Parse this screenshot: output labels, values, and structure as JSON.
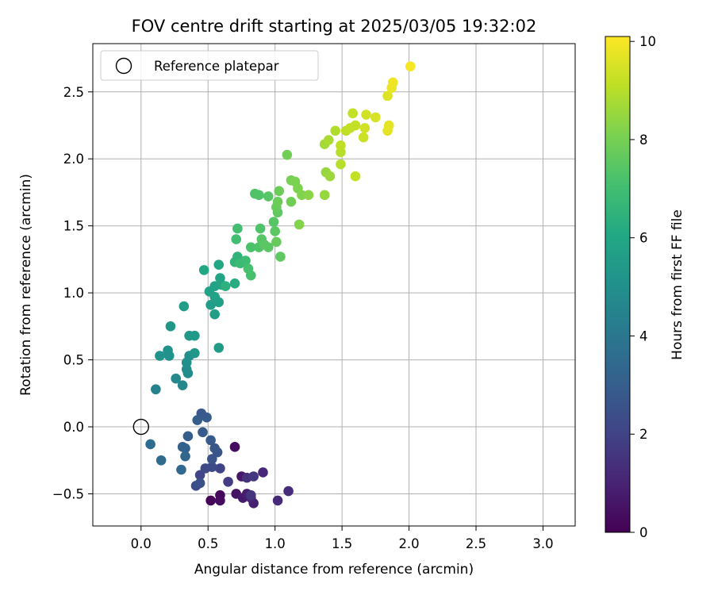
{
  "chart_data": {
    "type": "scatter",
    "title": "FOV centre drift starting at 2025/03/05 19:32:02",
    "xlabel": "Angular distance from reference (arcmin)",
    "ylabel": "Rotation from reference (arcmin)",
    "xlim": [
      -0.36,
      3.24
    ],
    "ylim": [
      -0.74,
      2.86
    ],
    "xticks": [
      "0.0",
      "0.5",
      "1.0",
      "1.5",
      "2.0",
      "2.5",
      "3.0"
    ],
    "yticks": [
      "−0.5",
      "0.0",
      "0.5",
      "1.0",
      "1.5",
      "2.0",
      "2.5"
    ],
    "grid": true,
    "legend": {
      "position": "top-left",
      "entries": [
        "Reference platepar"
      ]
    },
    "reference_point": [
      0.0,
      0.0
    ],
    "colorbar": {
      "label": "Hours from first FF file",
      "range": [
        0,
        10.1
      ],
      "ticks": [
        "0",
        "2",
        "4",
        "6",
        "8",
        "10"
      ],
      "colormap": "viridis"
    },
    "points": [
      [
        0.52,
        -0.55,
        0.1
      ],
      [
        0.59,
        -0.51,
        0.2
      ],
      [
        0.59,
        -0.55,
        0.3
      ],
      [
        0.7,
        -0.15,
        0.3
      ],
      [
        0.71,
        -0.5,
        0.5
      ],
      [
        0.75,
        -0.37,
        0.6
      ],
      [
        0.76,
        -0.53,
        0.7
      ],
      [
        0.79,
        -0.5,
        0.8
      ],
      [
        0.84,
        -0.57,
        0.9
      ],
      [
        0.82,
        -0.53,
        1.0
      ],
      [
        0.91,
        -0.34,
        1.1
      ],
      [
        1.02,
        -0.55,
        1.2
      ],
      [
        1.1,
        -0.48,
        1.3
      ],
      [
        0.79,
        -0.38,
        1.4
      ],
      [
        0.82,
        -0.51,
        1.5
      ],
      [
        0.84,
        -0.37,
        1.6
      ],
      [
        0.65,
        -0.41,
        1.8
      ],
      [
        0.59,
        -0.31,
        2.0
      ],
      [
        0.44,
        -0.36,
        2.1
      ],
      [
        0.48,
        -0.31,
        2.2
      ],
      [
        0.53,
        -0.3,
        2.3
      ],
      [
        0.41,
        -0.44,
        2.4
      ],
      [
        0.44,
        -0.42,
        2.5
      ],
      [
        0.53,
        -0.24,
        2.6
      ],
      [
        0.57,
        -0.19,
        2.6
      ],
      [
        0.55,
        -0.16,
        2.7
      ],
      [
        0.52,
        -0.1,
        2.8
      ],
      [
        0.46,
        -0.04,
        2.9
      ],
      [
        0.35,
        -0.07,
        3.0
      ],
      [
        0.33,
        -0.16,
        3.1
      ],
      [
        0.31,
        -0.15,
        3.2
      ],
      [
        0.33,
        -0.22,
        3.3
      ],
      [
        0.3,
        -0.32,
        3.4
      ],
      [
        0.15,
        -0.25,
        3.5
      ],
      [
        0.07,
        -0.13,
        3.6
      ],
      [
        0.42,
        0.05,
        3.0
      ],
      [
        0.45,
        0.1,
        2.8
      ],
      [
        0.49,
        0.07,
        2.9
      ],
      [
        0.11,
        0.28,
        4.5
      ],
      [
        0.31,
        0.31,
        4.6
      ],
      [
        0.26,
        0.36,
        4.7
      ],
      [
        0.35,
        0.4,
        4.8
      ],
      [
        0.34,
        0.43,
        4.9
      ],
      [
        0.34,
        0.48,
        5.0
      ],
      [
        0.36,
        0.53,
        5.0
      ],
      [
        0.21,
        0.53,
        5.1
      ],
      [
        0.2,
        0.57,
        5.1
      ],
      [
        0.14,
        0.53,
        5.2
      ],
      [
        0.4,
        0.55,
        5.3
      ],
      [
        0.22,
        0.75,
        5.3
      ],
      [
        0.36,
        0.68,
        5.3
      ],
      [
        0.4,
        0.68,
        5.4
      ],
      [
        0.58,
        0.59,
        5.5
      ],
      [
        0.32,
        0.9,
        5.6
      ],
      [
        0.55,
        0.84,
        5.6
      ],
      [
        0.52,
        0.91,
        5.6
      ],
      [
        0.58,
        0.93,
        5.7
      ],
      [
        0.55,
        0.97,
        5.8
      ],
      [
        0.51,
        1.01,
        5.8
      ],
      [
        0.55,
        1.05,
        5.8
      ],
      [
        0.6,
        1.06,
        5.9
      ],
      [
        0.59,
        1.11,
        5.9
      ],
      [
        0.58,
        1.21,
        6.0
      ],
      [
        0.47,
        1.17,
        6.0
      ],
      [
        0.7,
        1.07,
        6.2
      ],
      [
        0.63,
        1.05,
        6.4
      ],
      [
        0.7,
        1.23,
        6.6
      ],
      [
        0.72,
        1.27,
        6.5
      ],
      [
        0.74,
        1.22,
        6.8
      ],
      [
        0.78,
        1.24,
        6.9
      ],
      [
        0.71,
        1.4,
        7.0
      ],
      [
        0.72,
        1.48,
        7.0
      ],
      [
        0.8,
        1.18,
        7.1
      ],
      [
        0.82,
        1.13,
        7.1
      ],
      [
        0.82,
        1.34,
        7.2
      ],
      [
        0.88,
        1.34,
        7.3
      ],
      [
        0.89,
        1.48,
        7.3
      ],
      [
        0.9,
        1.4,
        7.4
      ],
      [
        0.92,
        1.36,
        7.5
      ],
      [
        0.95,
        1.34,
        7.5
      ],
      [
        0.99,
        1.53,
        7.4
      ],
      [
        1.0,
        1.46,
        7.5
      ],
      [
        1.02,
        1.6,
        7.6
      ],
      [
        1.04,
        1.27,
        7.6
      ],
      [
        1.01,
        1.38,
        7.7
      ],
      [
        1.01,
        1.64,
        7.7
      ],
      [
        1.02,
        1.68,
        7.8
      ],
      [
        1.03,
        1.76,
        7.8
      ],
      [
        0.85,
        1.74,
        7.3
      ],
      [
        0.88,
        1.73,
        7.3
      ],
      [
        0.95,
        1.72,
        7.4
      ],
      [
        1.09,
        2.03,
        7.9
      ],
      [
        1.12,
        1.68,
        7.9
      ],
      [
        1.12,
        1.84,
        8.0
      ],
      [
        1.15,
        1.83,
        8.1
      ],
      [
        1.17,
        1.78,
        8.1
      ],
      [
        1.18,
        1.51,
        8.2
      ],
      [
        1.2,
        1.73,
        8.2
      ],
      [
        1.25,
        1.73,
        8.3
      ],
      [
        1.37,
        1.73,
        8.5
      ],
      [
        1.38,
        1.9,
        8.5
      ],
      [
        1.41,
        1.87,
        8.6
      ],
      [
        1.37,
        2.11,
        8.7
      ],
      [
        1.4,
        2.14,
        8.8
      ],
      [
        1.45,
        2.21,
        8.9
      ],
      [
        1.49,
        2.05,
        9.0
      ],
      [
        1.49,
        2.1,
        9.1
      ],
      [
        1.49,
        1.96,
        9.0
      ],
      [
        1.53,
        2.21,
        9.1
      ],
      [
        1.56,
        2.23,
        9.2
      ],
      [
        1.58,
        2.34,
        9.2
      ],
      [
        1.6,
        2.25,
        9.2
      ],
      [
        1.6,
        1.87,
        9.2
      ],
      [
        1.66,
        2.16,
        9.3
      ],
      [
        1.67,
        2.23,
        9.4
      ],
      [
        1.68,
        2.33,
        9.4
      ],
      [
        1.75,
        2.31,
        9.5
      ],
      [
        1.84,
        2.47,
        9.6
      ],
      [
        1.84,
        2.21,
        9.7
      ],
      [
        1.85,
        2.25,
        9.7
      ],
      [
        1.87,
        2.53,
        9.8
      ],
      [
        1.88,
        2.57,
        9.9
      ],
      [
        2.01,
        2.69,
        10.0
      ]
    ]
  }
}
